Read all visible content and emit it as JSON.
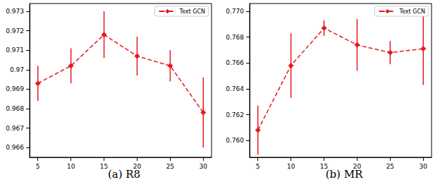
{
  "chart_data": [
    {
      "type": "line",
      "title": "(a) R8",
      "x": [
        5,
        10,
        15,
        20,
        25,
        30
      ],
      "series": [
        {
          "name": "Text GCN",
          "color": "#e41a1c",
          "marker": "diamond",
          "line_style": "dashed",
          "values": [
            0.9693,
            0.9702,
            0.9718,
            0.9707,
            0.9702,
            0.9678
          ],
          "error": [
            0.0009,
            0.0009,
            0.0012,
            0.001,
            0.0008,
            0.0018
          ]
        }
      ],
      "xlim": [
        3.75,
        31.25
      ],
      "xticks": [
        5,
        10,
        15,
        20,
        25,
        30
      ],
      "ylim": [
        0.9655,
        0.9734
      ],
      "yticks": [
        0.966,
        0.967,
        0.968,
        0.969,
        0.97,
        0.971,
        0.972,
        0.973
      ],
      "grid": false,
      "legend": "upper right"
    },
    {
      "type": "line",
      "title": "(b) MR",
      "x": [
        5,
        10,
        15,
        20,
        25,
        30
      ],
      "series": [
        {
          "name": "Text GCN",
          "color": "#e41a1c",
          "marker": "diamond",
          "line_style": "dashed",
          "values": [
            0.7608,
            0.7658,
            0.7687,
            0.7674,
            0.7668,
            0.7671
          ],
          "error": [
            0.0019,
            0.0025,
            0.0006,
            0.002,
            0.0009,
            0.0028
          ]
        }
      ],
      "xlim": [
        3.75,
        31.25
      ],
      "xticks": [
        5,
        10,
        15,
        20,
        25,
        30
      ],
      "ylim": [
        0.7587,
        0.7706
      ],
      "yticks": [
        {
          "value": 0.76,
          "label": "0.760"
        },
        0.762,
        0.764,
        0.766,
        0.768,
        {
          "value": 0.77,
          "label": "0.770"
        }
      ],
      "grid": false,
      "legend": "upper right"
    }
  ]
}
